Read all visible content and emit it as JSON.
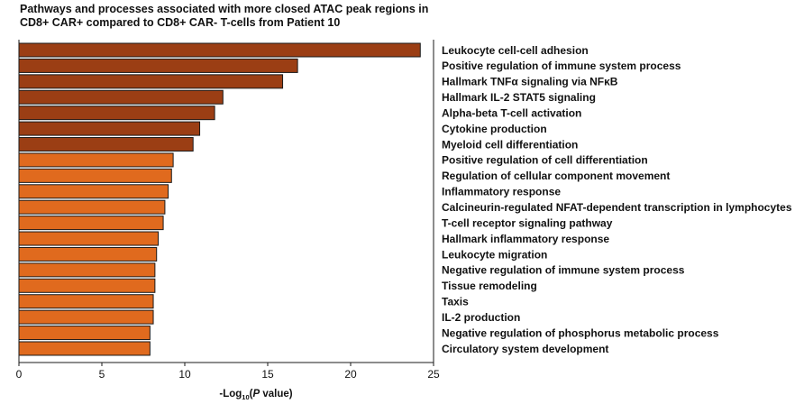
{
  "title_lines": [
    "Pathways and processes associated with more closed ATAC peak regions in",
    "CD8+ CAR+ compared to CD8+ CAR- T-cells from Patient 10"
  ],
  "chart_data": {
    "type": "bar",
    "orientation": "horizontal",
    "title": "Pathways and processes associated with more closed ATAC peak regions in CD8+ CAR+ compared to CD8+ CAR- T-cells from Patient 10",
    "xlabel": "-Log10(P value)",
    "xlabel_parts": {
      "prefix": "-Log",
      "subscript": "10",
      "open": "(",
      "italic": "P",
      "suffix": " value)"
    },
    "xlim": [
      0,
      25
    ],
    "xticks": [
      0,
      5,
      10,
      15,
      20,
      25
    ],
    "categories": [
      "Leukocyte cell-cell adhesion",
      "Positive regulation of immune system process",
      "Hallmark TNFα signaling via NFκB",
      "Hallmark IL-2 STAT5 signaling",
      "Alpha-beta T-cell activation",
      "Cytokine production",
      "Myeloid cell differentiation",
      "Positive regulation of cell differentiation",
      "Regulation of cellular component movement",
      "Inflammatory response",
      "Calcineurin-regulated NFAT-dependent transcription in lymphocytes",
      "T-cell receptor signaling pathway",
      "Hallmark inflammatory response",
      "Leukocyte migration",
      "Negative regulation of immune system process",
      "Tissue remodeling",
      "Taxis",
      "IL-2 production",
      "Negative regulation of phosphorus metabolic process",
      "Circulatory system development"
    ],
    "values": [
      24.2,
      16.8,
      15.9,
      12.3,
      11.8,
      10.9,
      10.5,
      9.3,
      9.2,
      9.0,
      8.8,
      8.7,
      8.4,
      8.3,
      8.2,
      8.2,
      8.1,
      8.1,
      7.9,
      7.9
    ],
    "colors": [
      "#9b3e14",
      "#9b3e14",
      "#9b3e14",
      "#9b3e14",
      "#9b3e14",
      "#9b3e14",
      "#9b3e14",
      "#e06a1e",
      "#e06a1e",
      "#e06a1e",
      "#e06a1e",
      "#e06a1e",
      "#e06a1e",
      "#e06a1e",
      "#e06a1e",
      "#e06a1e",
      "#e06a1e",
      "#e06a1e",
      "#e06a1e",
      "#e06a1e"
    ],
    "bar_edge_color": "#1a1a1a"
  }
}
